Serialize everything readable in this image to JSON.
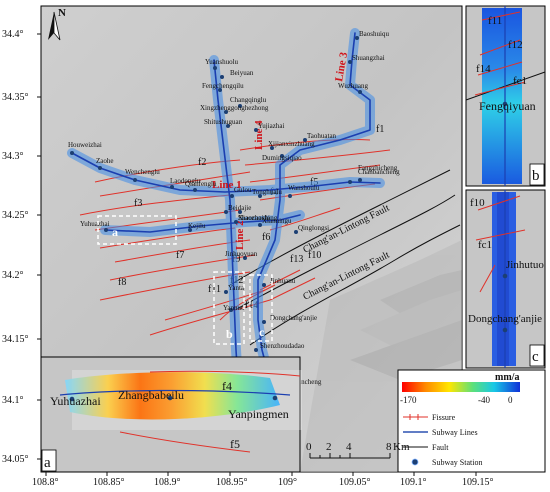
{
  "axes": {
    "y_ticks": [
      "34.4°",
      "34.35°",
      "34.3°",
      "34.25°",
      "34.2°",
      "34.15°",
      "34.1°",
      "34.05°"
    ],
    "x_ticks": [
      "108.8°",
      "108.85°",
      "108.9°",
      "108.95°",
      "109°",
      "109.05°",
      "109.1°",
      "109.15°"
    ]
  },
  "north_label": "N",
  "lines": [
    {
      "id": "line1",
      "label": "Line 1"
    },
    {
      "id": "line2",
      "label": "Line 2"
    },
    {
      "id": "line3",
      "label": "Line 3"
    },
    {
      "id": "line4",
      "label": "Line 4"
    }
  ],
  "faults": [
    "Chang'an-Lintong Fault",
    "Chang'an-Lintong Fault"
  ],
  "fissures": [
    "f1",
    "f2",
    "f3",
    "f4",
    "f5",
    "f6",
    "f7",
    "f8",
    "f9",
    "f10",
    "f11",
    "f12",
    "f13",
    "f14"
  ],
  "stations": [
    "Baoshuiqu",
    "Shuangzhai",
    "Wuzhuang",
    "Yuanshuolu",
    "Beiyuan",
    "Fengchengqilu",
    "Changqinglu",
    "Xingzhenggonghezhong",
    "Shitushuguan",
    "Yujiazhai",
    "Taohuatan",
    "Xijianxinzhuang",
    "Dumingsiqiao",
    "Houweizhai",
    "Zaohe",
    "Wenchenglu",
    "Laodonglu",
    "Qianfenglu",
    "Gulou",
    "Tonghualu",
    "Wanshoulu",
    "Fangzhicheng",
    "Chanbancheng",
    "Beidajie",
    "Yuhuazhai",
    "Kejilu",
    "Shaocaoshi",
    "Xiaozhaidong",
    "Xianningu",
    "Qinglongsi",
    "Jinhuoyuan",
    "Jinhuanu",
    "Yanta",
    "Yannuo",
    "Dongchang'anjie",
    "Shenzhoudadao",
    "Weiqunan",
    "Hangtianxincheng"
  ],
  "legend": {
    "title": "mm/a",
    "colorbar_min": "-170",
    "colorbar_mid": "-40",
    "colorbar_max": "0",
    "items": [
      {
        "label": "Fissure"
      },
      {
        "label": "Subway Lines"
      },
      {
        "label": "Fault"
      },
      {
        "label": "Subway Station"
      }
    ],
    "colors": {
      "fissure": "#e0322a",
      "subway": "#2d52b2",
      "fault": "#111111",
      "station": "#1c3f73"
    }
  },
  "scalebar": {
    "ticks": [
      "0",
      "2",
      "4",
      "8"
    ],
    "unit": "Km"
  },
  "inset_a": {
    "label": "a",
    "stations": [
      "Yuhuazhai",
      "Zhangbabeilu",
      "Yanpingmen"
    ],
    "fissures": [
      "f4",
      "f5"
    ]
  },
  "inset_b": {
    "label": "b",
    "stations": [
      "Fengqiyuan"
    ],
    "fissures": [
      "f11",
      "f12",
      "f14",
      "fc1"
    ]
  },
  "inset_c": {
    "label": "c",
    "stations": [
      "Jinhutuo",
      "Dongchang'anjie"
    ],
    "fissures": [
      "f10",
      "fc1"
    ]
  },
  "box_labels": [
    "a",
    "b",
    "c"
  ]
}
